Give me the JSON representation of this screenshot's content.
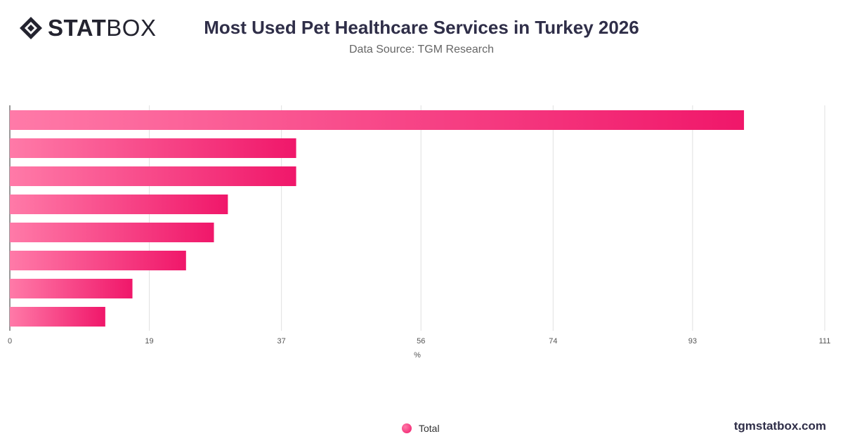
{
  "header": {
    "logo_bold": "STAT",
    "logo_light": "BOX",
    "title": "Most Used Pet Healthcare Services in Turkey 2026",
    "subtitle": "Data Source: TGM Research"
  },
  "legend": {
    "label": "Total"
  },
  "watermark": "tgmstatbox.com",
  "colors": {
    "bar_start": "#ff7aa8",
    "bar_end": "#f0176a",
    "grid": "#e0e0e0"
  },
  "chart_data": {
    "type": "bar",
    "orientation": "horizontal",
    "categories": [
      "",
      "",
      "",
      "",
      "",
      "",
      "",
      ""
    ],
    "series": [
      {
        "name": "Total",
        "values": [
          100,
          39,
          39,
          29.7,
          27.8,
          24,
          16.7,
          13
        ]
      }
    ],
    "xlabel": "%",
    "ylabel": "",
    "xlim": [
      0,
      111
    ],
    "xticks": [
      0,
      19,
      37,
      56,
      74,
      93,
      111
    ],
    "grid": true,
    "legend_position": "bottom-center"
  }
}
